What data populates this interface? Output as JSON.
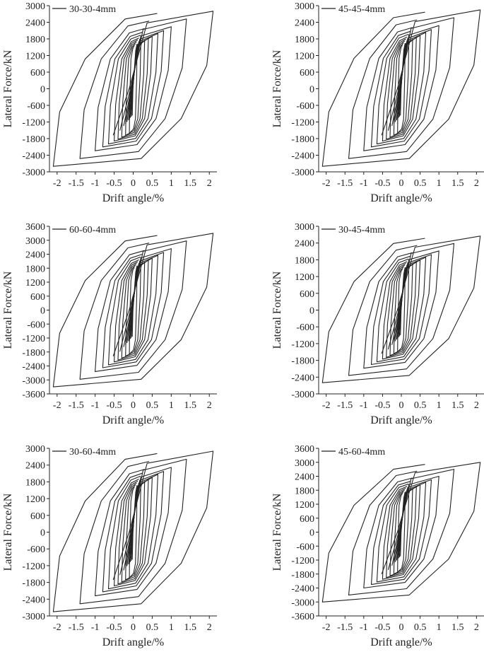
{
  "chart_data": [
    {
      "type": "line",
      "legend": "30-30-4mm",
      "xlabel": "Drift angle/%",
      "ylabel": "Lateral Force/kN",
      "xlim": [
        -2.2,
        2.2
      ],
      "ylim": [
        -3000,
        3000
      ],
      "xticks": [
        "-2",
        "-1.5",
        "-1",
        "-0.5",
        "0",
        "0.5",
        "1",
        "1.5",
        "2"
      ],
      "yticks": [
        "3000",
        "2400",
        "1800",
        "1200",
        "600",
        "0",
        "-600",
        "-1200",
        "-1800",
        "-2400",
        "-3000"
      ],
      "peak_force": 2800,
      "min_force": -2800,
      "x_max": 2.1,
      "x_min": -2.1
    },
    {
      "type": "line",
      "legend": "45-45-4mm",
      "xlabel": "Drift angle/%",
      "ylabel": "Lateral Force/kN",
      "xlim": [
        -2.2,
        2.2
      ],
      "ylim": [
        -3000,
        3000
      ],
      "xticks": [
        "-2",
        "-1.5",
        "-1",
        "-0.5",
        "0",
        "0.5",
        "1",
        "1.5",
        "2"
      ],
      "yticks": [
        "3000",
        "2400",
        "1800",
        "1200",
        "600",
        "0",
        "-600",
        "-1200",
        "-1800",
        "-2400",
        "-3000"
      ],
      "peak_force": 2850,
      "min_force": -2800,
      "x_max": 2.1,
      "x_min": -2.1
    },
    {
      "type": "line",
      "legend": "60-60-4mm",
      "xlabel": "Drift angle/%",
      "ylabel": "Lateral Force/kN",
      "xlim": [
        -2.2,
        2.2
      ],
      "ylim": [
        -3600,
        3600
      ],
      "xticks": [
        "-2",
        "-1.5",
        "-1",
        "-0.5",
        "0",
        "0.5",
        "1",
        "1.5",
        "2"
      ],
      "yticks": [
        "3600",
        "3000",
        "2400",
        "1800",
        "1200",
        "600",
        "0",
        "-600",
        "-1200",
        "-1800",
        "-2400",
        "-3000",
        "-3600"
      ],
      "peak_force": 3300,
      "min_force": -3300,
      "x_max": 2.1,
      "x_min": -2.1
    },
    {
      "type": "line",
      "legend": "30-45-4mm",
      "xlabel": "Drift angle/%",
      "ylabel": "Lateral Force/kN",
      "xlim": [
        -2.2,
        2.2
      ],
      "ylim": [
        -3000,
        3000
      ],
      "xticks": [
        "-2",
        "-1.5",
        "-1",
        "-0.5",
        "0",
        "0.5",
        "1",
        "1.5",
        "2"
      ],
      "yticks": [
        "3000",
        "2400",
        "1800",
        "1200",
        "600",
        "0",
        "-600",
        "-1200",
        "-1800",
        "-2400",
        "-3000"
      ],
      "peak_force": 2650,
      "min_force": -2600,
      "x_max": 2.1,
      "x_min": -2.1
    },
    {
      "type": "line",
      "legend": "30-60-4mm",
      "xlabel": "Drift angle/%",
      "ylabel": "Lateral Force/kN",
      "xlim": [
        -2.2,
        2.2
      ],
      "ylim": [
        -3000,
        3000
      ],
      "xticks": [
        "-2",
        "-1.5",
        "-1",
        "-0.5",
        "0",
        "0.5",
        "1",
        "1.5",
        "2"
      ],
      "yticks": [
        "3000",
        "2400",
        "1800",
        "1200",
        "600",
        "0",
        "-600",
        "-1200",
        "-1800",
        "-2400",
        "-3000"
      ],
      "peak_force": 2900,
      "min_force": -2850,
      "x_max": 2.1,
      "x_min": -2.1
    },
    {
      "type": "line",
      "legend": "45-60-4mm",
      "xlabel": "Drift angle/%",
      "ylabel": "Lateral Force/kN",
      "xlim": [
        -2.2,
        2.2
      ],
      "ylim": [
        -3600,
        3600
      ],
      "xticks": [
        "-2",
        "-1.5",
        "-1",
        "-0.5",
        "0",
        "0.5",
        "1",
        "1.5",
        "2"
      ],
      "yticks": [
        "3600",
        "3000",
        "2400",
        "1800",
        "1200",
        "600",
        "0",
        "-600",
        "-1200",
        "-1800",
        "-2400",
        "-3000",
        "-3600"
      ],
      "peak_force": 3000,
      "min_force": -3000,
      "x_max": 2.1,
      "x_min": -2.1
    }
  ],
  "style": {
    "line_color": "#222222",
    "axis_color": "#222222"
  }
}
